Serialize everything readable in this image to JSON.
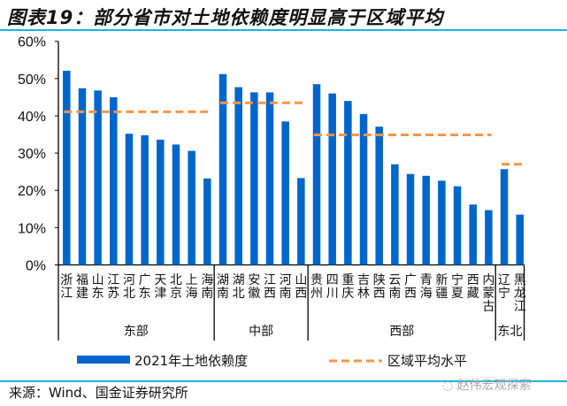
{
  "title": "图表19：部分省市对土地依赖度明显高于区域平均",
  "source": "来源：Wind、国金证券研究所",
  "watermark": "赵伟宏观探索",
  "colors": {
    "bar": "#0066cc",
    "avg": "#f79646",
    "rule": "#1fb1e6"
  },
  "chart_data": {
    "type": "bar",
    "ylim": [
      0,
      60
    ],
    "yticks": [
      "0%",
      "10%",
      "20%",
      "30%",
      "40%",
      "50%",
      "60%"
    ],
    "grid": false,
    "legend_position": "bottom",
    "legend": [
      "2021年土地依赖度",
      "区域平均水平"
    ],
    "groups": [
      {
        "name": "东部",
        "average": 41.1,
        "categories": [
          "浙江",
          "福建",
          "山东",
          "江苏",
          "河北",
          "广东",
          "天津",
          "北京",
          "上海",
          "海南"
        ],
        "values": [
          52.1,
          47.4,
          46.8,
          45.0,
          35.2,
          34.8,
          33.6,
          32.3,
          30.6,
          23.2
        ]
      },
      {
        "name": "中部",
        "average": 43.5,
        "categories": [
          "湖南",
          "湖北",
          "安徽",
          "江西",
          "河南",
          "山西"
        ],
        "values": [
          51.2,
          47.7,
          46.3,
          46.3,
          38.5,
          23.3
        ]
      },
      {
        "name": "西部",
        "average": 34.9,
        "categories": [
          "贵州",
          "四川",
          "重庆",
          "吉林",
          "陕西",
          "云南",
          "广西",
          "青海",
          "新疆",
          "宁夏",
          "西藏",
          "内蒙古"
        ],
        "values": [
          48.5,
          46.0,
          44.0,
          40.5,
          37.1,
          27.0,
          24.4,
          23.9,
          22.6,
          21.1,
          16.2,
          14.7
        ]
      },
      {
        "name": "东北",
        "average": 27.0,
        "categories": [
          "辽宁",
          "黑龙江"
        ],
        "values": [
          25.7,
          13.5
        ]
      }
    ]
  }
}
